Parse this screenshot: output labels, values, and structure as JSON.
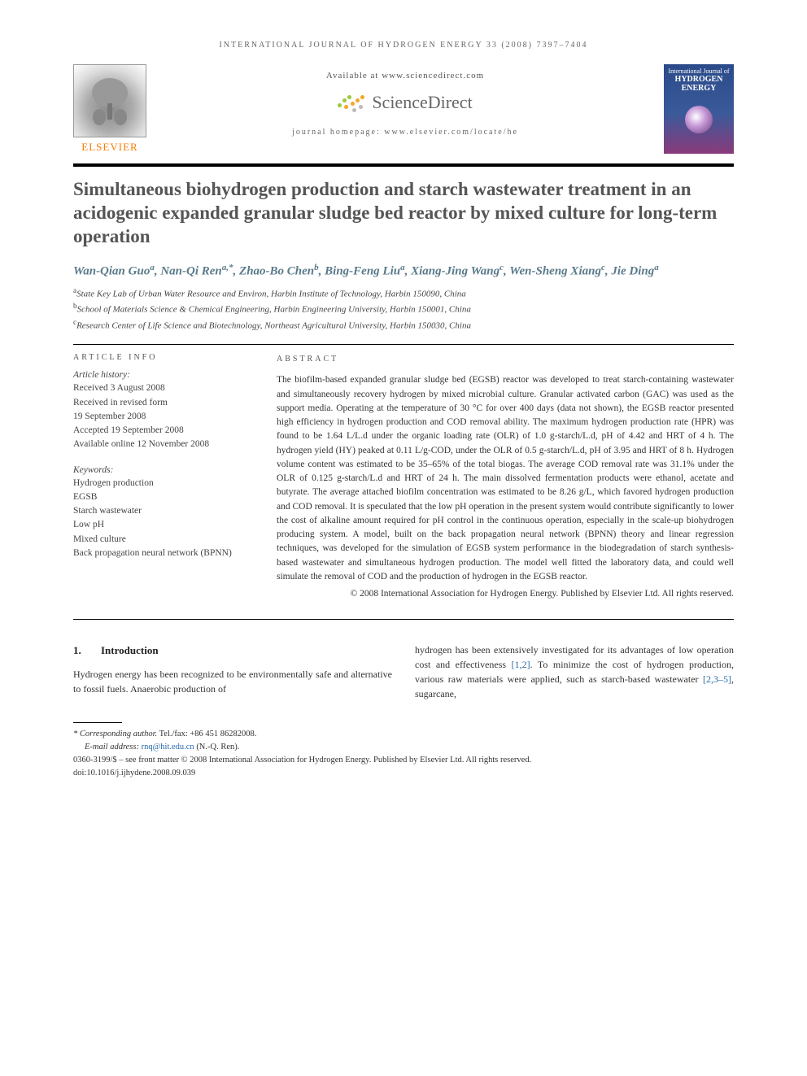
{
  "running_head": "INTERNATIONAL JOURNAL OF HYDROGEN ENERGY 33 (2008) 7397–7404",
  "elsevier": {
    "brand": "ELSEVIER"
  },
  "center": {
    "available": "Available at www.sciencedirect.com",
    "sd_name": "ScienceDirect",
    "journal_home": "journal homepage: www.elsevier.com/locate/he"
  },
  "cover": {
    "top": "International Journal of",
    "title": "HYDROGEN ENERGY"
  },
  "title": "Simultaneous biohydrogen production and starch wastewater treatment in an acidogenic expanded granular sludge bed reactor by mixed culture for long-term operation",
  "authors_html": [
    {
      "name": "Wan-Qian Guo",
      "sup": "a"
    },
    {
      "name": "Nan-Qi Ren",
      "sup": "a,*"
    },
    {
      "name": "Zhao-Bo Chen",
      "sup": "b"
    },
    {
      "name": "Bing-Feng Liu",
      "sup": "a"
    },
    {
      "name": "Xiang-Jing Wang",
      "sup": "c"
    },
    {
      "name": "Wen-Sheng Xiang",
      "sup": "c"
    },
    {
      "name": "Jie Ding",
      "sup": "a"
    }
  ],
  "affiliations": [
    {
      "sup": "a",
      "text": "State Key Lab of Urban Water Resource and Environ, Harbin Institute of Technology, Harbin 150090, China"
    },
    {
      "sup": "b",
      "text": "School of Materials Science & Chemical Engineering, Harbin Engineering University, Harbin 150001, China"
    },
    {
      "sup": "c",
      "text": "Research Center of Life Science and Biotechnology, Northeast Agricultural University, Harbin 150030, China"
    }
  ],
  "info": {
    "hd": "ARTICLE INFO",
    "history_hd": "Article history:",
    "history": [
      "Received 3 August 2008",
      "Received in revised form",
      "19 September 2008",
      "Accepted 19 September 2008",
      "Available online 12 November 2008"
    ],
    "kw_hd": "Keywords:",
    "keywords": [
      "Hydrogen production",
      "EGSB",
      "Starch wastewater",
      "Low pH",
      "Mixed culture",
      "Back propagation neural network (BPNN)"
    ]
  },
  "abstract": {
    "hd": "ABSTRACT",
    "body": "The biofilm-based expanded granular sludge bed (EGSB) reactor was developed to treat starch-containing wastewater and simultaneously recovery hydrogen by mixed microbial culture. Granular activated carbon (GAC) was used as the support media. Operating at the temperature of 30 °C for over 400 days (data not shown), the EGSB reactor presented high efficiency in hydrogen production and COD removal ability. The maximum hydrogen production rate (HPR) was found to be 1.64 L/L.d under the organic loading rate (OLR) of 1.0 g-starch/L.d, pH of 4.42 and HRT of 4 h. The hydrogen yield (HY) peaked at 0.11 L/g-COD, under the OLR of 0.5 g-starch/L.d, pH of 3.95 and HRT of 8 h. Hydrogen volume content was estimated to be 35–65% of the total biogas. The average COD removal rate was 31.1% under the OLR of 0.125 g-starch/L.d and HRT of 24 h. The main dissolved fermentation products were ethanol, acetate and butyrate. The average attached biofilm concentration was estimated to be 8.26 g/L, which favored hydrogen production and COD removal. It is speculated that the low pH operation in the present system would contribute significantly to lower the cost of alkaline amount required for pH control in the continuous operation, especially in the scale-up biohydrogen producing system. A model, built on the back propagation neural network (BPNN) theory and linear regression techniques, was developed for the simulation of EGSB system performance in the biodegradation of starch synthesis-based wastewater and simultaneous hydrogen production. The model well fitted the laboratory data, and could well simulate the removal of COD and the production of hydrogen in the EGSB reactor.",
    "copyright": "© 2008 International Association for Hydrogen Energy. Published by Elsevier Ltd. All rights reserved."
  },
  "section": {
    "num": "1.",
    "title": "Introduction",
    "left": "Hydrogen energy has been recognized to be environmentally safe and alternative to fossil fuels. Anaerobic production of",
    "right_a": "hydrogen has been extensively investigated for its advantages of low operation cost and effectiveness ",
    "ref1": "[1,2]",
    "right_b": ". To minimize the cost of hydrogen production, various raw materials were applied, such as starch-based wastewater ",
    "ref2": "[2,3–5]",
    "right_c": ", sugarcane,"
  },
  "footnotes": {
    "corr_label": "* Corresponding author.",
    "corr_tel": " Tel./fax: +86 451 86282008.",
    "email_label": "E-mail address: ",
    "email": "rnq@hit.edu.cn",
    "email_who": " (N.-Q. Ren).",
    "line1": "0360-3199/$ – see front matter © 2008 International Association for Hydrogen Energy. Published by Elsevier Ltd. All rights reserved.",
    "doi": "doi:10.1016/j.ijhydene.2008.09.039"
  },
  "colors": {
    "accent_orange": "#ff7a00",
    "author_teal": "#5a7a8a",
    "link_blue": "#2a6aaa",
    "sd_green": "#9ac93a",
    "sd_orange": "#f5a623",
    "sd_grey": "#666666"
  }
}
